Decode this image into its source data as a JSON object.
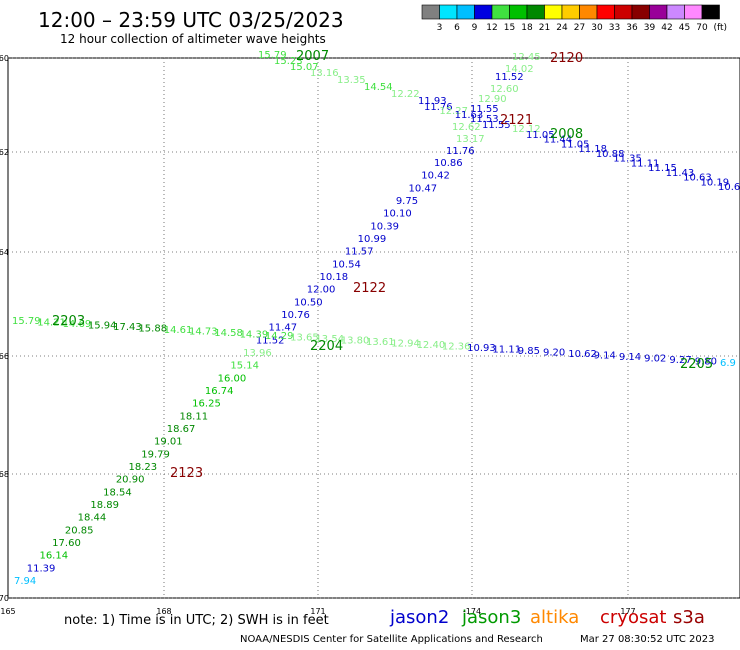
{
  "header": {
    "title": "12:00 – 23:59 UTC 03/25/2023",
    "subtitle": "12 hour collection of altimeter wave heights"
  },
  "color_scale": {
    "ticks": [
      "3",
      "6",
      "9",
      "12",
      "15",
      "18",
      "21",
      "24",
      "27",
      "30",
      "33",
      "36",
      "39",
      "42",
      "45",
      "70"
    ],
    "unit": "(ft)",
    "colors": [
      "#808080",
      "#00e5ff",
      "#00bfff",
      "#0000e0",
      "#40e040",
      "#00c000",
      "#008800",
      "#ffff00",
      "#ffcc00",
      "#ff8800",
      "#ff0000",
      "#cc0000",
      "#880000",
      "#990099",
      "#cc88ff",
      "#ff88ff",
      "#000000"
    ]
  },
  "axes": {
    "lon_ticks": [
      "165",
      "168",
      "171",
      "-174",
      "177"
    ],
    "lat_ticks": [
      "-60",
      "-62",
      "-64",
      "-66",
      "-68",
      "-70"
    ]
  },
  "legend": {
    "note": "note:  1) Time is in UTC;  2) SWH is in feet",
    "satellites": [
      {
        "name": "jason2",
        "color": "#0000cc"
      },
      {
        "name": "jason3",
        "color": "#009900"
      },
      {
        "name": "altika",
        "color": "#ff8800"
      },
      {
        "name": "cryosat",
        "color": "#cc0000"
      },
      {
        "name": "s3a",
        "color": "#990000"
      }
    ],
    "credit": "NOAA/NESDIS Center for Satellite Applications and Research",
    "timestamp": "Mar 27 08:30:52 UTC 2023"
  },
  "tracks": [
    {
      "pass_labels": [
        {
          "text": "2007",
          "color": "#008800"
        },
        {
          "text": "2121",
          "color": "#880000"
        },
        {
          "text": "2008",
          "color": "#008800"
        }
      ],
      "points": [
        {
          "v": "15.79",
          "c": "#40e040"
        },
        {
          "v": "15.23",
          "c": "#40e040"
        },
        {
          "v": "15.07",
          "c": "#40e040"
        },
        {
          "v": "13.16",
          "c": "#88ee88"
        },
        {
          "v": "13.35",
          "c": "#88ee88"
        },
        {
          "v": "14.54",
          "c": "#40e040"
        },
        {
          "v": "12.22",
          "c": "#88ee88"
        },
        {
          "v": "11.93",
          "c": "#0000cc"
        },
        {
          "v": "11.76",
          "c": "#0000cc"
        },
        {
          "v": "12.27",
          "c": "#88ee88"
        },
        {
          "v": "11.63",
          "c": "#0000cc"
        },
        {
          "v": "11.53",
          "c": "#0000cc"
        },
        {
          "v": "11.55",
          "c": "#0000cc"
        },
        {
          "v": "12.12",
          "c": "#88ee88"
        },
        {
          "v": "11.05",
          "c": "#0000cc"
        },
        {
          "v": "11.44",
          "c": "#0000cc"
        },
        {
          "v": "11.05",
          "c": "#0000cc"
        },
        {
          "v": "11.18",
          "c": "#0000cc"
        },
        {
          "v": "10.88",
          "c": "#0000cc"
        },
        {
          "v": "11.35",
          "c": "#0000cc"
        },
        {
          "v": "11.11",
          "c": "#0000cc"
        },
        {
          "v": "11.15",
          "c": "#0000cc"
        },
        {
          "v": "11.43",
          "c": "#0000cc"
        },
        {
          "v": "10.63",
          "c": "#0000cc"
        },
        {
          "v": "10.19",
          "c": "#0000cc"
        },
        {
          "v": "10.67",
          "c": "#0000cc"
        }
      ]
    },
    {
      "pass_labels": [
        {
          "text": "2120",
          "color": "#880000"
        },
        {
          "text": "2122",
          "color": "#880000"
        },
        {
          "text": "2123",
          "color": "#880000"
        }
      ],
      "points": [
        {
          "v": "12.45",
          "c": "#88ee88"
        },
        {
          "v": "14.02",
          "c": "#88ee88"
        },
        {
          "v": "11.52",
          "c": "#0000cc"
        },
        {
          "v": "12.60",
          "c": "#88ee88"
        },
        {
          "v": "12.90",
          "c": "#88ee88"
        },
        {
          "v": "11.55",
          "c": "#0000cc"
        },
        {
          "v": "12.62",
          "c": "#88ee88"
        },
        {
          "v": "13.17",
          "c": "#88ee88"
        },
        {
          "v": "11.76",
          "c": "#0000cc"
        },
        {
          "v": "10.86",
          "c": "#0000cc"
        },
        {
          "v": "10.42",
          "c": "#0000cc"
        },
        {
          "v": "10.47",
          "c": "#0000cc"
        },
        {
          "v": "9.75",
          "c": "#0000cc"
        },
        {
          "v": "10.10",
          "c": "#0000cc"
        },
        {
          "v": "10.39",
          "c": "#0000cc"
        },
        {
          "v": "10.99",
          "c": "#0000cc"
        },
        {
          "v": "11.57",
          "c": "#0000cc"
        },
        {
          "v": "10.54",
          "c": "#0000cc"
        },
        {
          "v": "10.18",
          "c": "#0000cc"
        },
        {
          "v": "12.00",
          "c": "#0000cc"
        },
        {
          "v": "10.50",
          "c": "#0000cc"
        },
        {
          "v": "10.76",
          "c": "#0000cc"
        },
        {
          "v": "11.47",
          "c": "#0000cc"
        },
        {
          "v": "11.52",
          "c": "#0000cc"
        },
        {
          "v": "13.96",
          "c": "#88ee88"
        },
        {
          "v": "15.14",
          "c": "#40e040"
        },
        {
          "v": "16.00",
          "c": "#00c000"
        },
        {
          "v": "16.74",
          "c": "#00c000"
        },
        {
          "v": "16.25",
          "c": "#00c000"
        },
        {
          "v": "18.11",
          "c": "#008800"
        },
        {
          "v": "18.67",
          "c": "#008800"
        },
        {
          "v": "19.01",
          "c": "#008800"
        },
        {
          "v": "19.79",
          "c": "#008800"
        },
        {
          "v": "18.23",
          "c": "#008800"
        },
        {
          "v": "20.90",
          "c": "#008800"
        },
        {
          "v": "18.54",
          "c": "#008800"
        },
        {
          "v": "18.89",
          "c": "#008800"
        },
        {
          "v": "18.44",
          "c": "#008800"
        },
        {
          "v": "20.85",
          "c": "#008800"
        },
        {
          "v": "17.60",
          "c": "#008800"
        },
        {
          "v": "16.14",
          "c": "#00c000"
        },
        {
          "v": "11.39",
          "c": "#0000cc"
        },
        {
          "v": "7.94",
          "c": "#00bfff"
        }
      ]
    },
    {
      "pass_labels": [
        {
          "text": "2203",
          "color": "#008800"
        },
        {
          "text": "2204",
          "color": "#008800"
        },
        {
          "text": "2205",
          "color": "#008800"
        }
      ],
      "points": [
        {
          "v": "15.79",
          "c": "#40e040"
        },
        {
          "v": "14.21",
          "c": "#40e040"
        },
        {
          "v": "14.69",
          "c": "#40e040"
        },
        {
          "v": "15.94",
          "c": "#008800"
        },
        {
          "v": "17.43",
          "c": "#008800"
        },
        {
          "v": "15.88",
          "c": "#008800"
        },
        {
          "v": "14.61",
          "c": "#40e040"
        },
        {
          "v": "14.73",
          "c": "#40e040"
        },
        {
          "v": "14.58",
          "c": "#40e040"
        },
        {
          "v": "14.39",
          "c": "#40e040"
        },
        {
          "v": "14.29",
          "c": "#40e040"
        },
        {
          "v": "13.65",
          "c": "#88ee88"
        },
        {
          "v": "13.54",
          "c": "#88ee88"
        },
        {
          "v": "13.80",
          "c": "#88ee88"
        },
        {
          "v": "13.61",
          "c": "#88ee88"
        },
        {
          "v": "12.94",
          "c": "#88ee88"
        },
        {
          "v": "12.40",
          "c": "#88ee88"
        },
        {
          "v": "12.36",
          "c": "#88ee88"
        },
        {
          "v": "10.93",
          "c": "#0000cc"
        },
        {
          "v": "11.11",
          "c": "#0000cc"
        },
        {
          "v": "9.85",
          "c": "#0000cc"
        },
        {
          "v": "9.20",
          "c": "#0000cc"
        },
        {
          "v": "10.62",
          "c": "#0000cc"
        },
        {
          "v": "9.14",
          "c": "#0000cc"
        },
        {
          "v": "9.14",
          "c": "#0000cc"
        },
        {
          "v": "9.02",
          "c": "#0000cc"
        },
        {
          "v": "9.27",
          "c": "#0000cc"
        },
        {
          "v": "9.80",
          "c": "#0000cc"
        },
        {
          "v": "6.9",
          "c": "#00bfff"
        }
      ]
    }
  ]
}
